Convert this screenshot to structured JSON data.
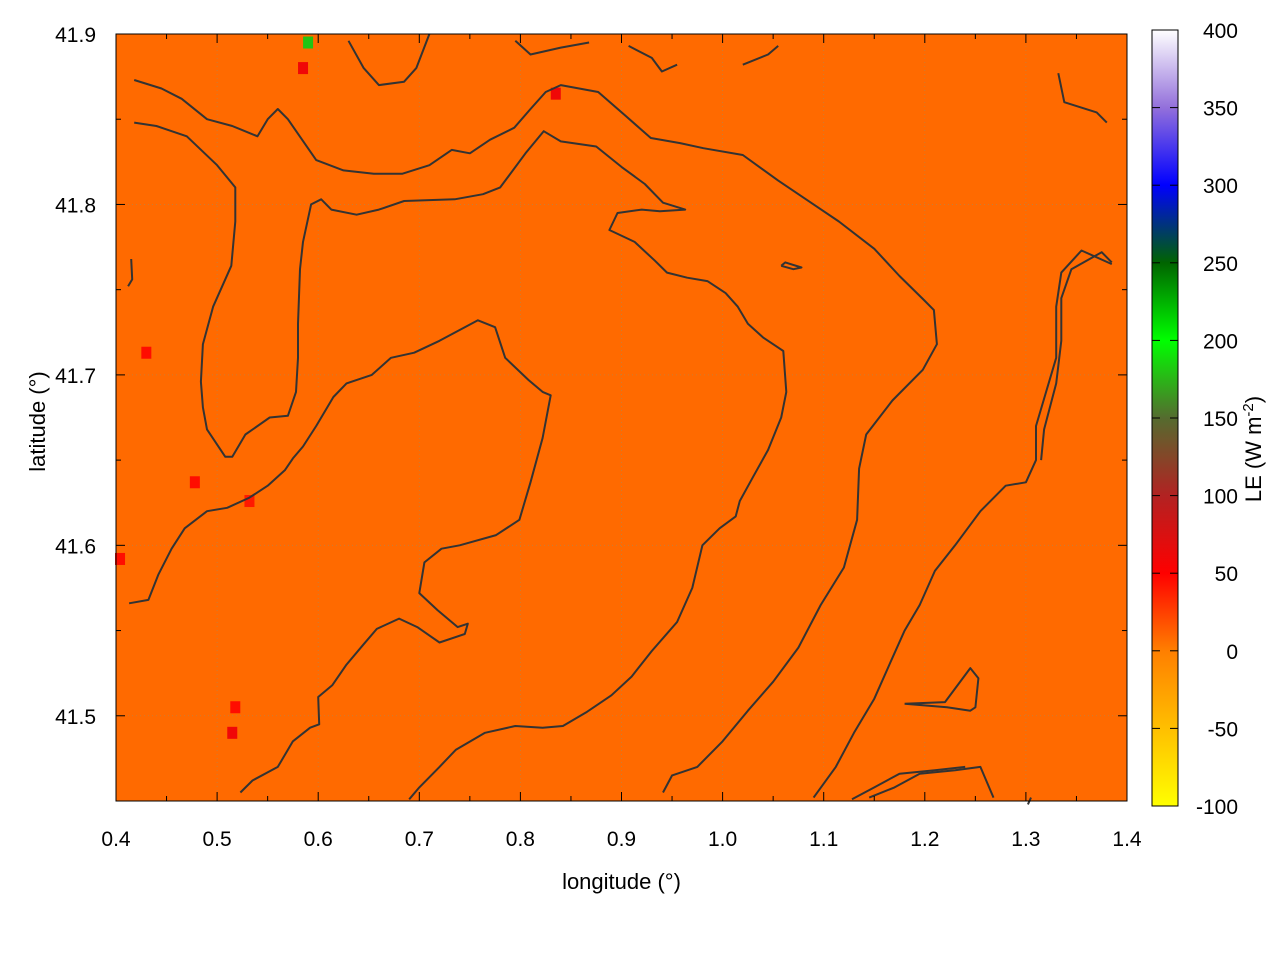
{
  "chart_data": {
    "type": "heatmap",
    "title": "",
    "xlabel": "longitude (°)",
    "ylabel": "latitude (°)",
    "xlim": [
      0.4,
      1.4
    ],
    "ylim": [
      41.45,
      41.9
    ],
    "x_ticks": [
      "0.4",
      "0.5",
      "0.6",
      "0.7",
      "0.8",
      "0.9",
      "1.0",
      "1.1",
      "1.2",
      "1.3",
      "1.4"
    ],
    "y_ticks": [
      "41.5",
      "41.6",
      "41.7",
      "41.8",
      "41.9"
    ],
    "grid": true,
    "colorbar": {
      "label_main": "LE (W m",
      "label_exp": "-2",
      "label_end": ")",
      "range": [
        -100,
        400
      ],
      "ticks": [
        "-100",
        "-50",
        "0",
        "50",
        "100",
        "150",
        "200",
        "250",
        "300",
        "350",
        "400"
      ],
      "stops": [
        {
          "value": -100,
          "color": "#ffff00"
        },
        {
          "value": 0,
          "color": "#ff7f00"
        },
        {
          "value": 50,
          "color": "#ff0000"
        },
        {
          "value": 100,
          "color": "#b22222"
        },
        {
          "value": 150,
          "color": "#556b2f"
        },
        {
          "value": 200,
          "color": "#00ff00"
        },
        {
          "value": 250,
          "color": "#006400"
        },
        {
          "value": 300,
          "color": "#0000ff"
        },
        {
          "value": 350,
          "color": "#9370db"
        },
        {
          "value": 400,
          "color": "#ffffff"
        }
      ]
    },
    "field": {
      "background_value": 8,
      "background_color": "#ff6a00",
      "hotspots": [
        {
          "lon": 0.585,
          "lat": 41.88,
          "value": 60
        },
        {
          "lon": 0.59,
          "lat": 41.895,
          "value": 180
        },
        {
          "lon": 0.835,
          "lat": 41.865,
          "value": 60
        },
        {
          "lon": 0.515,
          "lat": 41.49,
          "value": 60
        },
        {
          "lon": 0.518,
          "lat": 41.505,
          "value": 45
        },
        {
          "lon": 0.478,
          "lat": 41.637,
          "value": 45
        },
        {
          "lon": 0.43,
          "lat": 41.713,
          "value": 45
        },
        {
          "lon": 0.404,
          "lat": 41.592,
          "value": 45
        },
        {
          "lon": 0.532,
          "lat": 41.626,
          "value": 40
        }
      ]
    },
    "contour_color": "#333333",
    "contours": [
      [
        [
          0.418,
          41.873
        ],
        [
          0.445,
          41.868
        ],
        [
          0.465,
          41.862
        ],
        [
          0.49,
          41.85
        ],
        [
          0.515,
          41.846
        ],
        [
          0.54,
          41.84
        ],
        [
          0.55,
          41.85
        ],
        [
          0.56,
          41.856
        ],
        [
          0.57,
          41.85
        ],
        [
          0.598,
          41.826
        ],
        [
          0.625,
          41.82
        ],
        [
          0.655,
          41.818
        ],
        [
          0.683,
          41.818
        ],
        [
          0.71,
          41.823
        ],
        [
          0.732,
          41.832
        ],
        [
          0.75,
          41.83
        ],
        [
          0.77,
          41.838
        ],
        [
          0.794,
          41.845
        ],
        [
          0.81,
          41.856
        ],
        [
          0.825,
          41.866
        ],
        [
          0.84,
          41.87
        ],
        [
          0.877,
          41.866
        ],
        [
          0.904,
          41.852
        ],
        [
          0.929,
          41.839
        ],
        [
          0.958,
          41.836
        ],
        [
          0.981,
          41.833
        ],
        [
          1.02,
          41.829
        ],
        [
          1.055,
          41.814
        ],
        [
          1.09,
          41.8
        ],
        [
          1.115,
          41.79
        ],
        [
          1.15,
          41.774
        ],
        [
          1.175,
          41.758
        ],
        [
          1.199,
          41.744
        ],
        [
          1.209,
          41.738
        ],
        [
          1.212,
          41.718
        ],
        [
          1.198,
          41.703
        ],
        [
          1.168,
          41.685
        ],
        [
          1.142,
          41.665
        ],
        [
          1.135,
          41.645
        ],
        [
          1.133,
          41.615
        ],
        [
          1.12,
          41.587
        ],
        [
          1.097,
          41.565
        ],
        [
          1.075,
          41.54
        ],
        [
          1.05,
          41.52
        ],
        [
          1.025,
          41.503
        ],
        [
          1.0,
          41.485
        ],
        [
          0.975,
          41.47
        ],
        [
          0.95,
          41.465
        ],
        [
          0.941,
          41.455
        ]
      ],
      [
        [
          0.418,
          41.848
        ],
        [
          0.44,
          41.846
        ],
        [
          0.47,
          41.84
        ],
        [
          0.5,
          41.823
        ],
        [
          0.518,
          41.81
        ],
        [
          0.518,
          41.79
        ],
        [
          0.514,
          41.764
        ],
        [
          0.496,
          41.74
        ],
        [
          0.486,
          41.718
        ],
        [
          0.484,
          41.696
        ],
        [
          0.486,
          41.681
        ],
        [
          0.49,
          41.668
        ],
        [
          0.508,
          41.652
        ],
        [
          0.515,
          41.652
        ],
        [
          0.528,
          41.665
        ],
        [
          0.552,
          41.675
        ],
        [
          0.57,
          41.676
        ],
        [
          0.578,
          41.69
        ],
        [
          0.58,
          41.71
        ],
        [
          0.58,
          41.73
        ],
        [
          0.582,
          41.762
        ],
        [
          0.585,
          41.778
        ],
        [
          0.593,
          41.8
        ],
        [
          0.603,
          41.803
        ],
        [
          0.613,
          41.797
        ],
        [
          0.638,
          41.794
        ],
        [
          0.66,
          41.797
        ],
        [
          0.685,
          41.802
        ],
        [
          0.735,
          41.803
        ],
        [
          0.763,
          41.806
        ],
        [
          0.78,
          41.81
        ],
        [
          0.805,
          41.83
        ],
        [
          0.823,
          41.843
        ],
        [
          0.84,
          41.837
        ],
        [
          0.875,
          41.834
        ],
        [
          0.9,
          41.822
        ],
        [
          0.923,
          41.812
        ],
        [
          0.941,
          41.801
        ],
        [
          0.963,
          41.797
        ],
        [
          0.938,
          41.796
        ],
        [
          0.92,
          41.797
        ],
        [
          0.896,
          41.795
        ],
        [
          0.888,
          41.785
        ],
        [
          0.913,
          41.778
        ],
        [
          0.933,
          41.767
        ],
        [
          0.945,
          41.76
        ],
        [
          0.965,
          41.757
        ],
        [
          0.985,
          41.755
        ],
        [
          1.003,
          41.748
        ],
        [
          1.015,
          41.74
        ],
        [
          1.025,
          41.73
        ],
        [
          1.04,
          41.722
        ],
        [
          1.055,
          41.716
        ],
        [
          1.06,
          41.714
        ],
        [
          1.063,
          41.69
        ],
        [
          1.058,
          41.675
        ],
        [
          1.045,
          41.656
        ],
        [
          1.03,
          41.64
        ],
        [
          1.017,
          41.626
        ],
        [
          1.013,
          41.617
        ],
        [
          0.997,
          41.61
        ],
        [
          0.98,
          41.6
        ],
        [
          0.97,
          41.575
        ],
        [
          0.955,
          41.555
        ],
        [
          0.93,
          41.538
        ],
        [
          0.91,
          41.523
        ],
        [
          0.89,
          41.512
        ],
        [
          0.865,
          41.502
        ],
        [
          0.842,
          41.494
        ],
        [
          0.822,
          41.493
        ],
        [
          0.795,
          41.494
        ],
        [
          0.765,
          41.49
        ],
        [
          0.736,
          41.48
        ],
        [
          0.72,
          41.47
        ],
        [
          0.7,
          41.458
        ],
        [
          0.69,
          41.451
        ]
      ],
      [
        [
          0.413,
          41.566
        ],
        [
          0.432,
          41.568
        ],
        [
          0.442,
          41.583
        ],
        [
          0.455,
          41.598
        ],
        [
          0.468,
          41.61
        ],
        [
          0.49,
          41.62
        ],
        [
          0.51,
          41.622
        ],
        [
          0.532,
          41.628
        ],
        [
          0.55,
          41.635
        ],
        [
          0.567,
          41.644
        ],
        [
          0.575,
          41.651
        ],
        [
          0.585,
          41.658
        ],
        [
          0.598,
          41.67
        ],
        [
          0.615,
          41.687
        ],
        [
          0.628,
          41.695
        ],
        [
          0.653,
          41.7
        ],
        [
          0.672,
          41.71
        ],
        [
          0.695,
          41.713
        ],
        [
          0.72,
          41.72
        ],
        [
          0.745,
          41.728
        ],
        [
          0.758,
          41.732
        ],
        [
          0.775,
          41.728
        ],
        [
          0.785,
          41.71
        ],
        [
          0.808,
          41.697
        ],
        [
          0.822,
          41.69
        ],
        [
          0.83,
          41.688
        ],
        [
          0.822,
          41.663
        ],
        [
          0.81,
          41.637
        ],
        [
          0.799,
          41.615
        ],
        [
          0.776,
          41.606
        ],
        [
          0.74,
          41.6
        ],
        [
          0.722,
          41.598
        ],
        [
          0.705,
          41.59
        ],
        [
          0.7,
          41.572
        ],
        [
          0.718,
          41.562
        ],
        [
          0.738,
          41.552
        ],
        [
          0.748,
          41.554
        ],
        [
          0.745,
          41.548
        ],
        [
          0.72,
          41.543
        ],
        [
          0.698,
          41.552
        ],
        [
          0.68,
          41.557
        ],
        [
          0.658,
          41.551
        ],
        [
          0.645,
          41.542
        ],
        [
          0.628,
          41.53
        ],
        [
          0.614,
          41.518
        ],
        [
          0.6,
          41.511
        ],
        [
          0.601,
          41.495
        ],
        [
          0.592,
          41.493
        ],
        [
          0.575,
          41.485
        ],
        [
          0.56,
          41.47
        ],
        [
          0.535,
          41.462
        ],
        [
          0.523,
          41.455
        ]
      ]
    ],
    "small_contours": [
      [
        [
          0.415,
          41.768
        ],
        [
          0.416,
          41.756
        ],
        [
          0.412,
          41.752
        ]
      ],
      [
        [
          0.63,
          41.896
        ],
        [
          0.645,
          41.88
        ],
        [
          0.66,
          41.87
        ],
        [
          0.685,
          41.872
        ],
        [
          0.697,
          41.88
        ],
        [
          0.71,
          41.9
        ]
      ],
      [
        [
          0.795,
          41.896
        ],
        [
          0.81,
          41.888
        ],
        [
          0.84,
          41.892
        ],
        [
          0.868,
          41.895
        ]
      ],
      [
        [
          0.907,
          41.893
        ],
        [
          0.93,
          41.886
        ],
        [
          0.94,
          41.878
        ],
        [
          0.955,
          41.882
        ]
      ],
      [
        [
          1.02,
          41.882
        ],
        [
          1.045,
          41.888
        ],
        [
          1.055,
          41.893
        ]
      ],
      [
        [
          1.058,
          41.764
        ],
        [
          1.07,
          41.762
        ],
        [
          1.078,
          41.763
        ],
        [
          1.062,
          41.766
        ],
        [
          1.058,
          41.764
        ]
      ],
      [
        [
          1.332,
          41.877
        ],
        [
          1.338,
          41.86
        ],
        [
          1.37,
          41.854
        ],
        [
          1.38,
          41.848
        ]
      ],
      [
        [
          1.305,
          41.452
        ],
        [
          1.302,
          41.448
        ]
      ],
      [
        [
          1.18,
          41.507
        ],
        [
          1.222,
          41.505
        ],
        [
          1.245,
          41.503
        ],
        [
          1.25,
          41.505
        ],
        [
          1.253,
          41.522
        ],
        [
          1.245,
          41.528
        ],
        [
          1.22,
          41.508
        ],
        [
          1.18,
          41.507
        ]
      ],
      [
        [
          1.145,
          41.452
        ],
        [
          1.17,
          41.458
        ],
        [
          1.195,
          41.466
        ],
        [
          1.23,
          41.468
        ],
        [
          1.255,
          41.47
        ],
        [
          1.268,
          41.452
        ]
      ],
      [
        [
          1.315,
          41.65
        ],
        [
          1.318,
          41.668
        ],
        [
          1.33,
          41.695
        ],
        [
          1.335,
          41.72
        ],
        [
          1.335,
          41.745
        ],
        [
          1.345,
          41.762
        ],
        [
          1.375,
          41.772
        ],
        [
          1.385,
          41.766
        ]
      ],
      [
        [
          1.128,
          41.451
        ],
        [
          1.15,
          41.458
        ],
        [
          1.175,
          41.466
        ],
        [
          1.21,
          41.468
        ],
        [
          1.24,
          41.47
        ]
      ]
    ],
    "extra_contours": [
      [
        [
          1.09,
          41.452
        ],
        [
          1.112,
          41.47
        ],
        [
          1.13,
          41.49
        ],
        [
          1.15,
          41.51
        ],
        [
          1.165,
          41.53
        ],
        [
          1.18,
          41.55
        ],
        [
          1.195,
          41.565
        ],
        [
          1.21,
          41.585
        ],
        [
          1.23,
          41.6
        ],
        [
          1.255,
          41.62
        ],
        [
          1.28,
          41.635
        ],
        [
          1.3,
          41.637
        ],
        [
          1.31,
          41.65
        ],
        [
          1.31,
          41.67
        ],
        [
          1.32,
          41.69
        ],
        [
          1.33,
          41.71
        ],
        [
          1.33,
          41.73
        ],
        [
          1.33,
          41.74
        ],
        [
          1.335,
          41.76
        ],
        [
          1.355,
          41.773
        ],
        [
          1.385,
          41.765
        ]
      ]
    ]
  }
}
